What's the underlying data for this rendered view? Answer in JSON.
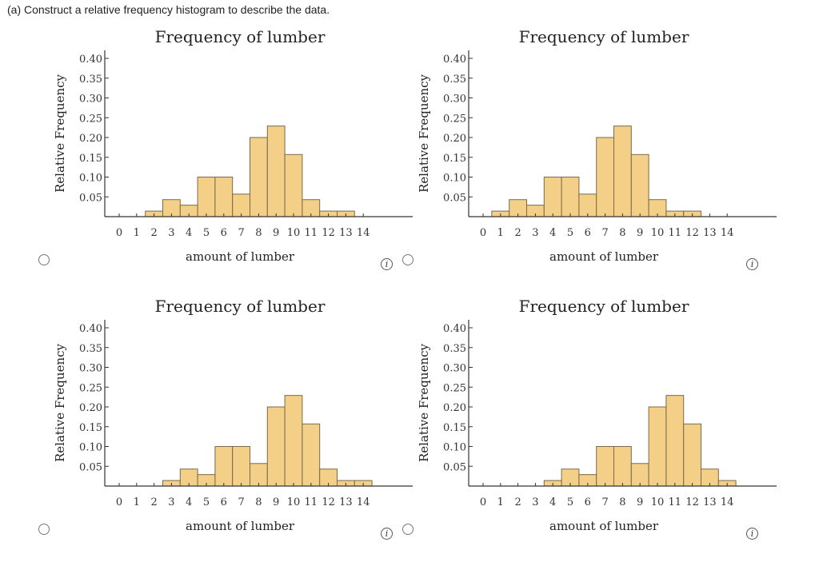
{
  "question": "(a)  Construct a relative frequency histogram to describe the data.",
  "colors": {
    "bar_fill": "#f3cf88",
    "bar_stroke": "#7a6a4a",
    "axis": "#333333"
  },
  "info_icon_label": "i",
  "chart_data": [
    {
      "type": "bar",
      "title": "Frequency of lumber",
      "xlabel": "amount of lumber",
      "ylabel": "Relative Frequency",
      "xticks": [
        "0",
        "1",
        "2",
        "3",
        "4",
        "5",
        "6",
        "7",
        "8",
        "9",
        "10",
        "11",
        "12",
        "13",
        "14"
      ],
      "yticks": [
        "0.05",
        "0.10",
        "0.15",
        "0.20",
        "0.25",
        "0.30",
        "0.35",
        "0.40"
      ],
      "ylim": [
        0,
        0.4
      ],
      "xlim": [
        0,
        14
      ],
      "x": [
        2,
        3,
        4,
        5,
        6,
        7,
        8,
        9,
        10,
        11,
        12,
        13
      ],
      "values": [
        0.014,
        0.043,
        0.029,
        0.1,
        0.1,
        0.057,
        0.2,
        0.229,
        0.157,
        0.043,
        0.014,
        0.014
      ]
    },
    {
      "type": "bar",
      "title": "Frequency of lumber",
      "xlabel": "amount of lumber",
      "ylabel": "Relative Frequency",
      "xticks": [
        "0",
        "1",
        "2",
        "3",
        "4",
        "5",
        "6",
        "7",
        "8",
        "9",
        "10",
        "11",
        "12",
        "13",
        "14"
      ],
      "yticks": [
        "0.05",
        "0.10",
        "0.15",
        "0.20",
        "0.25",
        "0.30",
        "0.35",
        "0.40"
      ],
      "ylim": [
        0,
        0.4
      ],
      "xlim": [
        0,
        14
      ],
      "x": [
        1,
        2,
        3,
        4,
        5,
        6,
        7,
        8,
        9,
        10,
        11,
        12
      ],
      "values": [
        0.014,
        0.043,
        0.029,
        0.1,
        0.1,
        0.057,
        0.2,
        0.229,
        0.157,
        0.043,
        0.014,
        0.014
      ]
    },
    {
      "type": "bar",
      "title": "Frequency of lumber",
      "xlabel": "amount of lumber",
      "ylabel": "Relative Frequency",
      "xticks": [
        "0",
        "1",
        "2",
        "3",
        "4",
        "5",
        "6",
        "7",
        "8",
        "9",
        "10",
        "11",
        "12",
        "13",
        "14"
      ],
      "yticks": [
        "0.05",
        "0.10",
        "0.15",
        "0.20",
        "0.25",
        "0.30",
        "0.35",
        "0.40"
      ],
      "ylim": [
        0,
        0.4
      ],
      "xlim": [
        0,
        14
      ],
      "x": [
        3,
        4,
        5,
        6,
        7,
        8,
        9,
        10,
        11,
        12,
        13,
        14
      ],
      "values": [
        0.014,
        0.043,
        0.029,
        0.1,
        0.1,
        0.057,
        0.2,
        0.229,
        0.157,
        0.043,
        0.014,
        0.014
      ]
    },
    {
      "type": "bar",
      "title": "Frequency of lumber",
      "xlabel": "amount of lumber",
      "ylabel": "Relative Frequency",
      "xticks": [
        "0",
        "1",
        "2",
        "3",
        "4",
        "5",
        "6",
        "7",
        "8",
        "9",
        "10",
        "11",
        "12",
        "13",
        "14"
      ],
      "yticks": [
        "0.05",
        "0.10",
        "0.15",
        "0.20",
        "0.25",
        "0.30",
        "0.35",
        "0.40"
      ],
      "ylim": [
        0,
        0.4
      ],
      "xlim": [
        0,
        14
      ],
      "x": [
        4,
        5,
        6,
        7,
        8,
        9,
        10,
        11,
        12,
        13,
        14
      ],
      "values": [
        0.014,
        0.043,
        0.029,
        0.1,
        0.1,
        0.057,
        0.2,
        0.229,
        0.157,
        0.043,
        0.014
      ]
    }
  ]
}
